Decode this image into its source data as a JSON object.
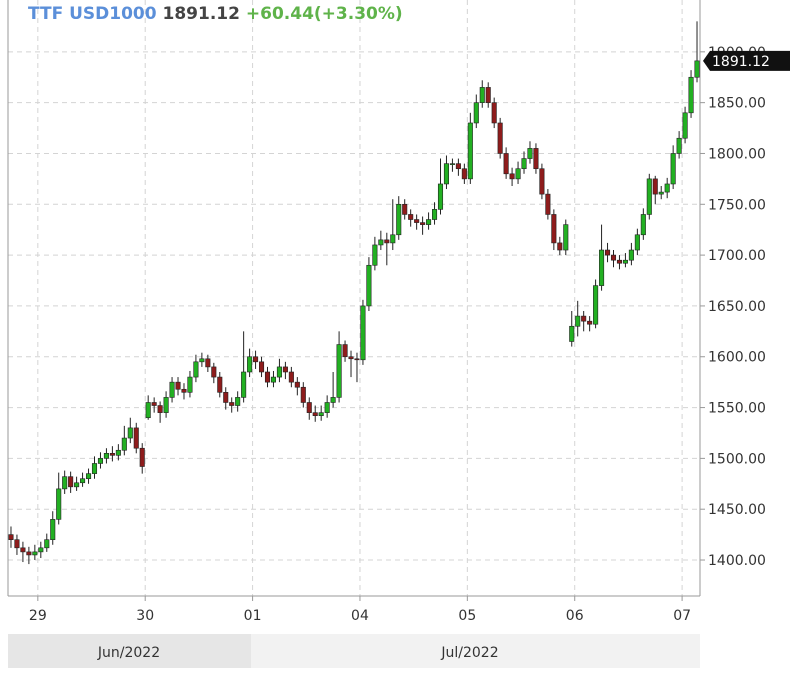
{
  "chart_data": {
    "type": "candlestick",
    "title": "TTF USD1000",
    "change": "+60.44(+3.30%)",
    "up_color": "#22b022",
    "down_color": "#8e1c1c",
    "grid": true,
    "months": [
      "Jun/2022",
      "Jul/2022"
    ],
    "xlim": [
      -0.5,
      115.5
    ],
    "xticks": [
      {
        "value": 4.5,
        "label": "29"
      },
      {
        "value": 22.5,
        "label": "30"
      },
      {
        "value": 40.5,
        "label": "01"
      },
      {
        "value": 58.5,
        "label": "04"
      },
      {
        "value": 76.5,
        "label": "05"
      },
      {
        "value": 94.5,
        "label": "06"
      },
      {
        "value": 112.5,
        "label": "07"
      }
    ],
    "ylim": [
      1364.6,
      1951
    ],
    "yticks": [
      {
        "value": 1400,
        "label": "1400.00"
      },
      {
        "value": 1450,
        "label": "1450.00"
      },
      {
        "value": 1500,
        "label": "1500.00"
      },
      {
        "value": 1550,
        "label": "1550.00"
      },
      {
        "value": 1600,
        "label": "1600.00"
      },
      {
        "value": 1650,
        "label": "1650.00"
      },
      {
        "value": 1700,
        "label": "1700.00"
      },
      {
        "value": 1750,
        "label": "1750.00"
      },
      {
        "value": 1800,
        "label": "1800.00"
      },
      {
        "value": 1850,
        "label": "1850.00"
      },
      {
        "value": 1900,
        "label": "1900.00"
      }
    ],
    "open": [
      1425,
      1420,
      1412,
      1408,
      1405,
      1408,
      1412,
      1420,
      1440,
      1470,
      1482,
      1472,
      1476,
      1480,
      1485,
      1495,
      1500,
      1505,
      1503,
      1508,
      1520,
      1530,
      1510,
      1540,
      1555,
      1552,
      1545,
      1560,
      1575,
      1568,
      1565,
      1580,
      1595,
      1598,
      1590,
      1580,
      1565,
      1555,
      1552,
      1560,
      1585,
      1600,
      1595,
      1585,
      1575,
      1580,
      1590,
      1585,
      1575,
      1570,
      1555,
      1545,
      1542,
      1545,
      1555,
      1560,
      1612,
      1600,
      1598,
      1597,
      1650,
      1690,
      1710,
      1715,
      1712,
      1720,
      1750,
      1740,
      1735,
      1732,
      1730,
      1735,
      1745,
      1770,
      1790,
      1790,
      1785,
      1775,
      1830,
      1850,
      1865,
      1850,
      1830,
      1800,
      1780,
      1775,
      1785,
      1795,
      1805,
      1785,
      1760,
      1740,
      1712,
      1705,
      1615,
      1630,
      1640,
      1635,
      1632,
      1670,
      1705,
      1700,
      1695,
      1692,
      1695,
      1705,
      1720,
      1740,
      1775,
      1760,
      1762,
      1770,
      1800,
      1815,
      1840,
      1875
    ],
    "high": [
      1433,
      1425,
      1418,
      1413,
      1415,
      1418,
      1426,
      1448,
      1486,
      1488,
      1487,
      1482,
      1486,
      1490,
      1502,
      1506,
      1510,
      1512,
      1514,
      1532,
      1540,
      1535,
      1515,
      1562,
      1560,
      1556,
      1566,
      1580,
      1580,
      1574,
      1586,
      1602,
      1604,
      1602,
      1594,
      1585,
      1570,
      1560,
      1566,
      1625,
      1608,
      1606,
      1600,
      1590,
      1586,
      1598,
      1595,
      1590,
      1580,
      1575,
      1560,
      1552,
      1552,
      1562,
      1585,
      1625,
      1616,
      1606,
      1604,
      1656,
      1698,
      1718,
      1724,
      1722,
      1755,
      1758,
      1755,
      1745,
      1740,
      1738,
      1742,
      1752,
      1795,
      1798,
      1795,
      1795,
      1790,
      1840,
      1858,
      1872,
      1870,
      1855,
      1835,
      1806,
      1786,
      1792,
      1802,
      1812,
      1810,
      1790,
      1765,
      1745,
      1718,
      1735,
      1645,
      1655,
      1645,
      1640,
      1676,
      1730,
      1712,
      1705,
      1700,
      1702,
      1712,
      1726,
      1746,
      1780,
      1778,
      1768,
      1776,
      1808,
      1822,
      1846,
      1882,
      1930
    ],
    "low": [
      1412,
      1405,
      1398,
      1396,
      1400,
      1402,
      1408,
      1415,
      1435,
      1465,
      1466,
      1468,
      1472,
      1475,
      1480,
      1490,
      1495,
      1497,
      1498,
      1503,
      1515,
      1505,
      1485,
      1538,
      1545,
      1535,
      1540,
      1555,
      1562,
      1558,
      1560,
      1575,
      1590,
      1585,
      1574,
      1560,
      1548,
      1545,
      1546,
      1555,
      1580,
      1588,
      1580,
      1570,
      1570,
      1575,
      1578,
      1570,
      1562,
      1550,
      1538,
      1536,
      1537,
      1540,
      1550,
      1555,
      1595,
      1580,
      1575,
      1592,
      1645,
      1685,
      1705,
      1690,
      1705,
      1715,
      1735,
      1728,
      1725,
      1720,
      1725,
      1730,
      1740,
      1765,
      1782,
      1778,
      1770,
      1770,
      1825,
      1845,
      1845,
      1825,
      1795,
      1775,
      1768,
      1770,
      1780,
      1790,
      1780,
      1755,
      1735,
      1705,
      1700,
      1700,
      1610,
      1620,
      1625,
      1625,
      1628,
      1665,
      1693,
      1688,
      1686,
      1688,
      1690,
      1700,
      1715,
      1735,
      1750,
      1755,
      1756,
      1765,
      1795,
      1810,
      1835,
      1870
    ],
    "close": [
      1420,
      1412,
      1408,
      1405,
      1408,
      1412,
      1420,
      1440,
      1470,
      1482,
      1472,
      1476,
      1480,
      1485,
      1495,
      1500,
      1505,
      1503,
      1508,
      1520,
      1530,
      1510,
      1492,
      1555,
      1552,
      1545,
      1560,
      1575,
      1568,
      1565,
      1580,
      1595,
      1598,
      1590,
      1580,
      1565,
      1555,
      1552,
      1560,
      1585,
      1600,
      1595,
      1585,
      1575,
      1580,
      1590,
      1585,
      1575,
      1570,
      1555,
      1545,
      1542,
      1545,
      1555,
      1560,
      1612,
      1600,
      1598,
      1597,
      1650,
      1690,
      1710,
      1715,
      1712,
      1720,
      1750,
      1740,
      1735,
      1732,
      1730,
      1735,
      1745,
      1770,
      1790,
      1790,
      1785,
      1775,
      1830,
      1850,
      1865,
      1850,
      1830,
      1800,
      1780,
      1775,
      1785,
      1795,
      1805,
      1785,
      1760,
      1740,
      1712,
      1705,
      1730,
      1630,
      1640,
      1635,
      1632,
      1670,
      1705,
      1700,
      1695,
      1692,
      1695,
      1705,
      1720,
      1740,
      1775,
      1760,
      1762,
      1770,
      1800,
      1815,
      1840,
      1875,
      1891.12
    ]
  }
}
